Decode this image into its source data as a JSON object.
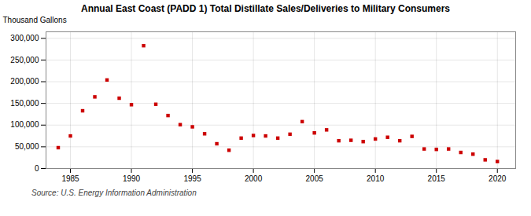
{
  "chart_data": {
    "type": "scatter",
    "title": "Annual East Coast (PADD 1) Total Distillate Sales/Deliveries to Military Consumers",
    "ylabel": "Thousand Gallons",
    "source": "Source: U.S. Energy Information Administration",
    "color": "#cc0000",
    "marker": "square",
    "grid": true,
    "xlim": [
      1983.0,
      2021.5
    ],
    "ylim": [
      0,
      315000
    ],
    "xticks": [
      1985,
      1990,
      1995,
      2000,
      2005,
      2010,
      2015,
      2020
    ],
    "yticks": [
      0,
      {
        "value": 50000,
        "label": "50,000"
      },
      {
        "value": 100000,
        "label": "100,000"
      },
      {
        "value": 150000,
        "label": "150,000"
      },
      {
        "value": 200000,
        "label": "200,000"
      },
      {
        "value": 250000,
        "label": "250,000"
      },
      {
        "value": 300000,
        "label": "300,000"
      }
    ],
    "x": [
      1984,
      1985,
      1986,
      1987,
      1988,
      1989,
      1990,
      1991,
      1992,
      1993,
      1994,
      1995,
      1996,
      1997,
      1998,
      1999,
      2000,
      2001,
      2002,
      2003,
      2004,
      2005,
      2006,
      2007,
      2008,
      2009,
      2010,
      2011,
      2012,
      2013,
      2014,
      2015,
      2016,
      2017,
      2018,
      2019,
      2020
    ],
    "values": [
      48000,
      75000,
      133000,
      165000,
      204000,
      162000,
      147000,
      283000,
      148000,
      122000,
      101000,
      96000,
      80000,
      57000,
      42000,
      70000,
      76000,
      75000,
      70000,
      79000,
      108000,
      82000,
      89000,
      64000,
      65000,
      62000,
      68000,
      72000,
      64000,
      74000,
      45000,
      44000,
      45000,
      37000,
      33000,
      20000,
      16000
    ]
  }
}
